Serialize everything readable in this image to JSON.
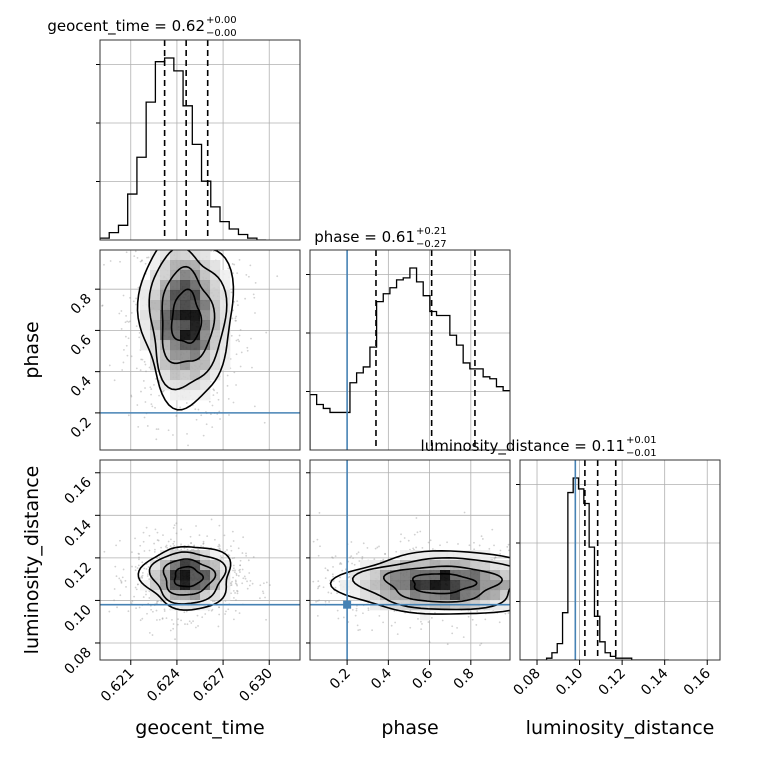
{
  "colors": {
    "truth": "#4682b4",
    "hist": "#000000",
    "grid": "#b0b0b0",
    "scatter": "#9a9a9a"
  },
  "chart_data": {
    "type": "corner",
    "parameters": [
      "geocent_time",
      "phase",
      "luminosity_distance"
    ],
    "truths": {
      "phase": 0.2,
      "luminosity_distance": 0.098
    },
    "axes_ranges": {
      "geocent_time": [
        0.619,
        0.632
      ],
      "phase": [
        0.02,
        0.99
      ],
      "luminosity_distance": [
        0.072,
        0.166
      ]
    },
    "ticks": {
      "geocent_time": {
        "values": [
          0.621,
          0.624,
          0.627,
          0.63
        ],
        "labels": [
          "0.621",
          "0.624",
          "0.627",
          "0.630"
        ]
      },
      "phase": {
        "values": [
          0.2,
          0.4,
          0.6,
          0.8
        ],
        "labels": [
          "0.2",
          "0.4",
          "0.6",
          "0.8"
        ]
      },
      "luminosity_distance": {
        "values": [
          0.08,
          0.1,
          0.12,
          0.14,
          0.16
        ],
        "labels": [
          "0.08",
          "0.10",
          "0.12",
          "0.14",
          "0.16"
        ]
      }
    },
    "titles": [
      {
        "param": "geocent_time",
        "label": "geocent_time = 0.62",
        "sup": "+0.00",
        "sub": "−0.00"
      },
      {
        "param": "phase",
        "label": "phase = 0.61",
        "sup": "+0.21",
        "sub": "−0.27"
      },
      {
        "param": "luminosity_distance",
        "label": "luminosity_distance = 0.11",
        "sup": "+0.01",
        "sub": "−0.01"
      }
    ],
    "quantiles": {
      "geocent_time": [
        0.6232,
        0.6246,
        0.626
      ],
      "phase": [
        0.34,
        0.61,
        0.82
      ],
      "luminosity_distance": [
        0.1025,
        0.1085,
        0.117
      ]
    },
    "histograms": {
      "geocent_time": {
        "edges_start": 0.619,
        "bin_width": 0.0006,
        "counts": [
          1,
          4,
          8,
          25,
          45,
          75,
          97,
          99,
          92,
          73,
          52,
          32,
          18,
          10,
          6,
          3,
          1,
          0
        ]
      },
      "phase": {
        "edges_start": 0.02,
        "bin_width": 0.0323,
        "counts": [
          28,
          23,
          21,
          19,
          19,
          19,
          34,
          39,
          42,
          52,
          75,
          79,
          82,
          86,
          87,
          92,
          85,
          78,
          70,
          68,
          68,
          58,
          53,
          44,
          41,
          41,
          37,
          36,
          32,
          30
        ]
      },
      "luminosity_distance": {
        "edges_start": 0.072,
        "bin_width": 0.0025,
        "counts": [
          0,
          0,
          0,
          0,
          0,
          1,
          4,
          9,
          26,
          92,
          100,
          94,
          86,
          62,
          24,
          10,
          4,
          2,
          1,
          1,
          1,
          0,
          0,
          0,
          0,
          0,
          0,
          0
        ]
      }
    },
    "density_2d": [
      {
        "x": "geocent_time",
        "y": "phase",
        "center": [
          0.6246,
          0.66
        ],
        "sigma": [
          0.00125,
          0.17
        ]
      },
      {
        "x": "geocent_time",
        "y": "luminosity_distance",
        "center": [
          0.6247,
          0.111
        ],
        "sigma": [
          0.0012,
          0.0062
        ]
      },
      {
        "x": "phase",
        "y": "luminosity_distance",
        "center": [
          0.66,
          0.108
        ],
        "sigma": [
          0.2,
          0.0062
        ]
      }
    ]
  }
}
